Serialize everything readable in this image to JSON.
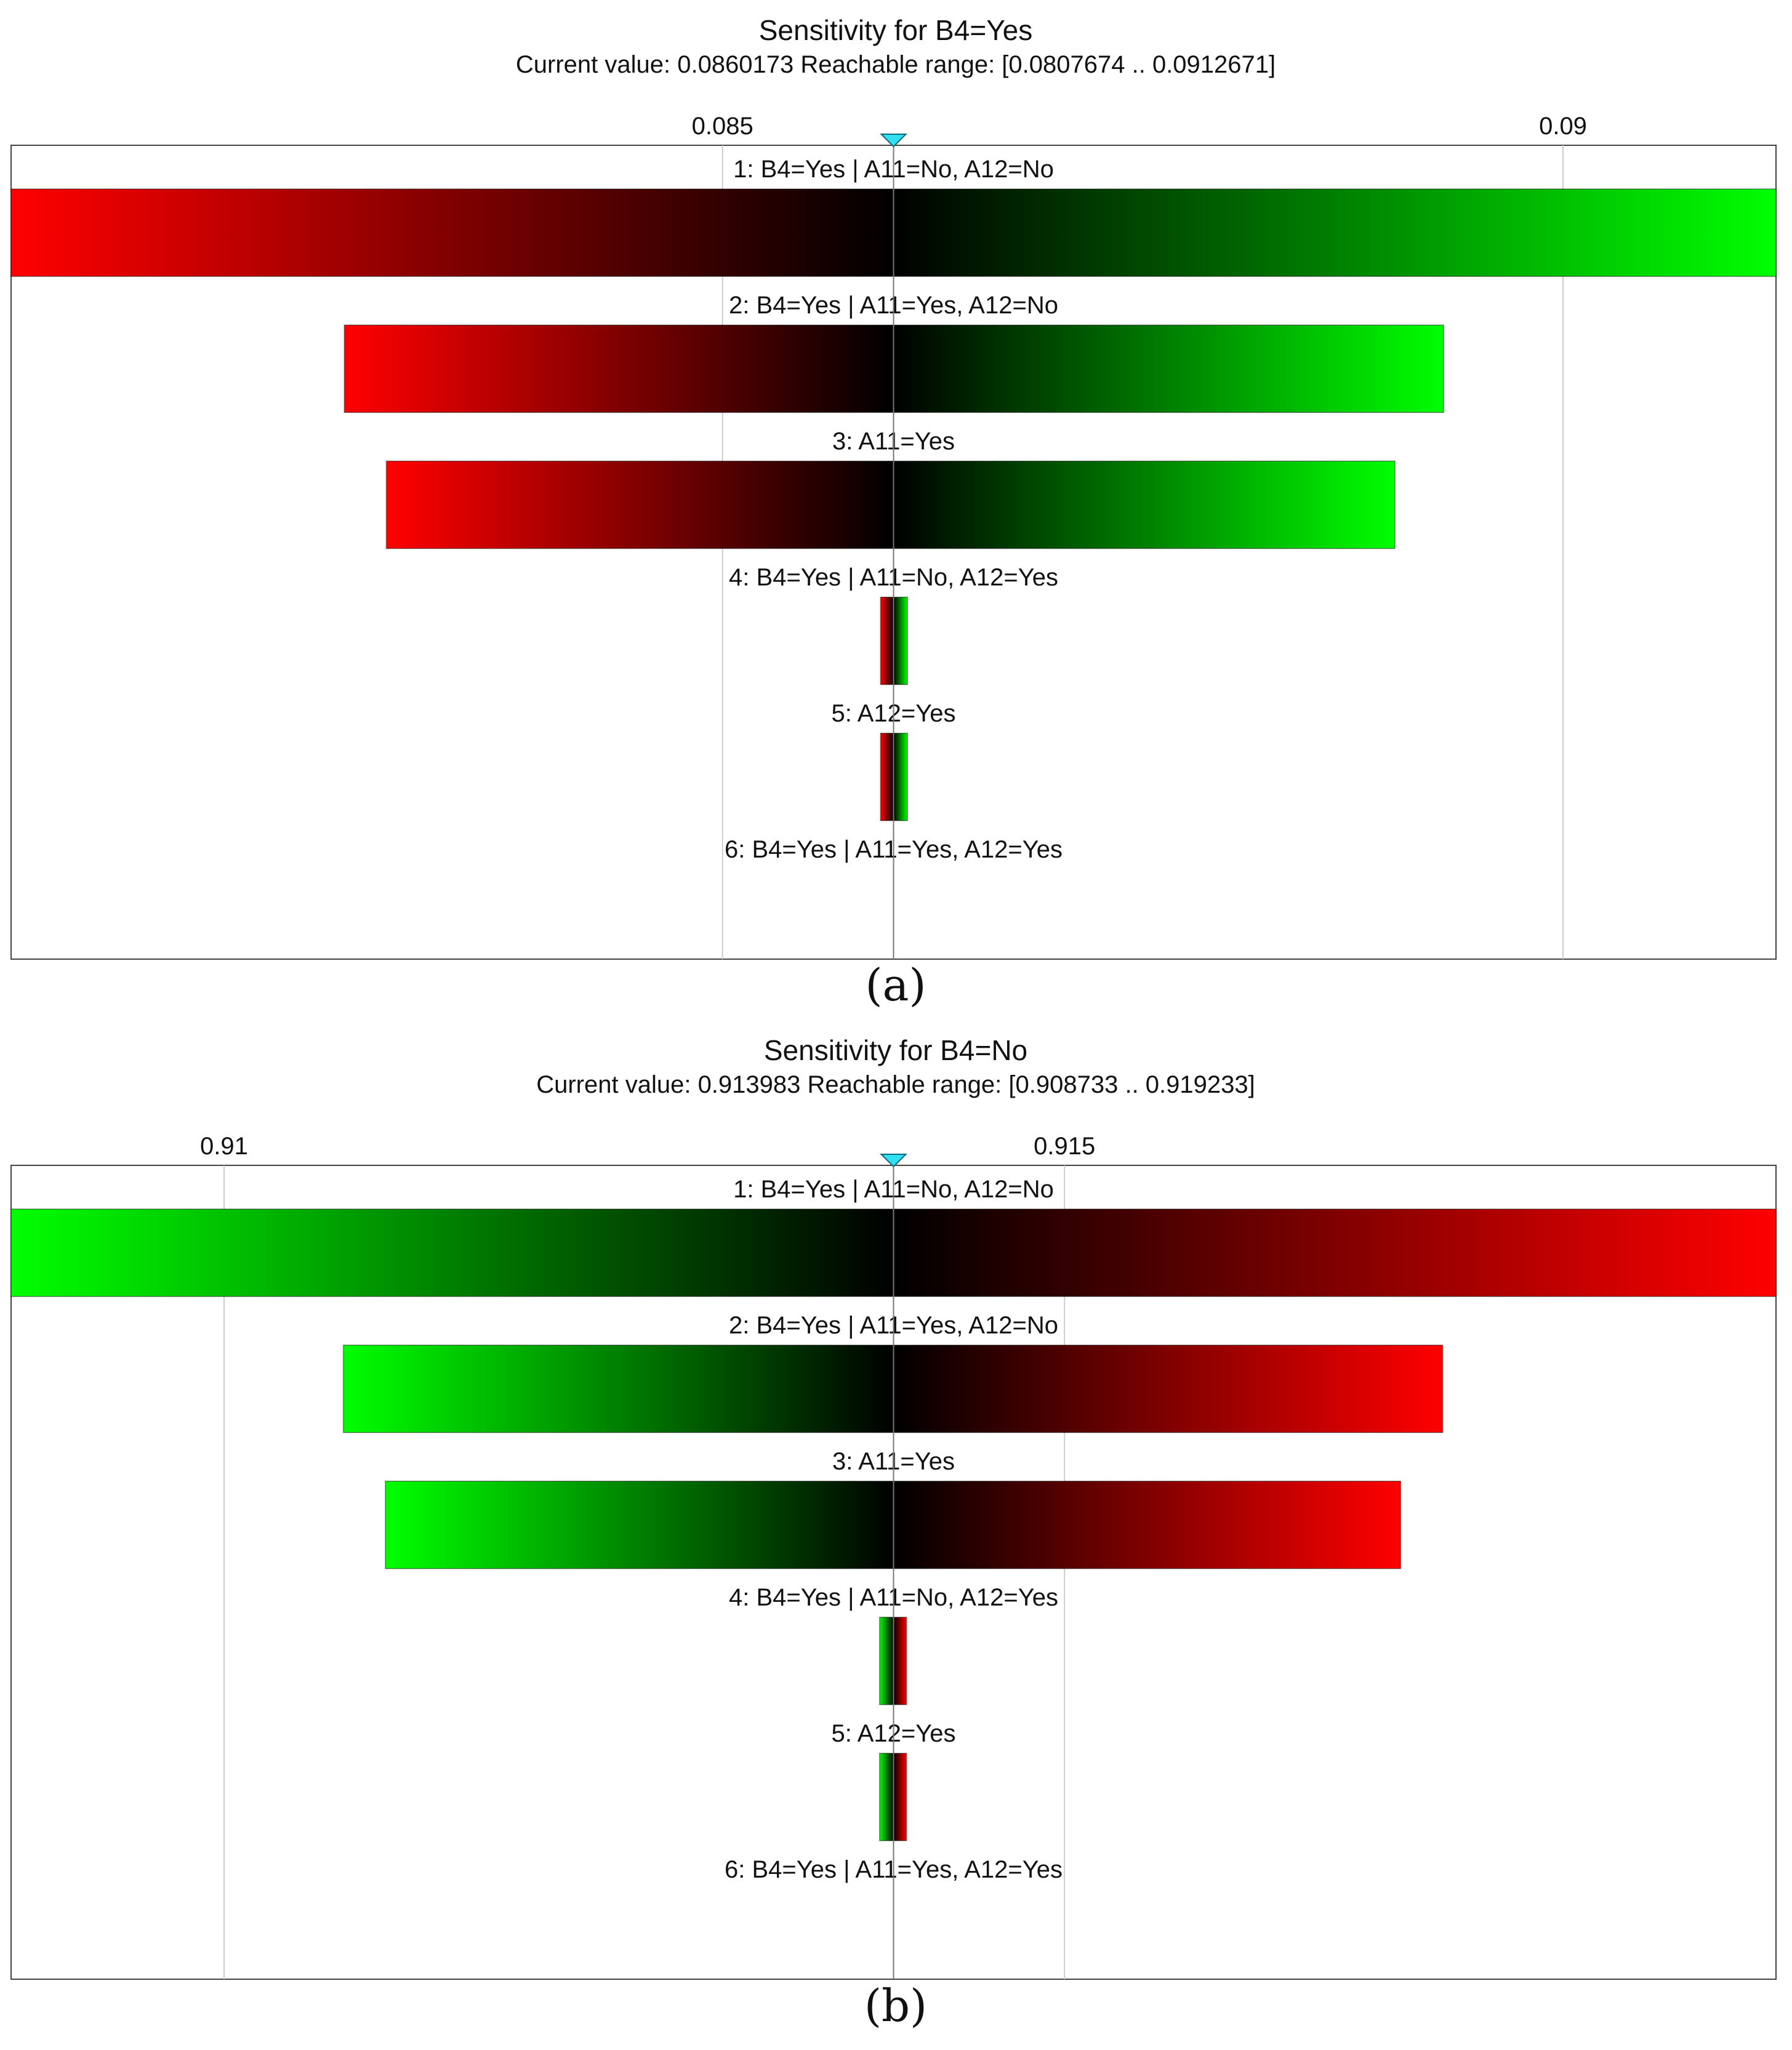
{
  "chart_data": [
    {
      "type": "bar",
      "panel_label": "(a)",
      "title": "Sensitivity for B4=Yes",
      "subtitle": "Current value: 0.0860173  Reachable range: [0.0807674 .. 0.0912671]",
      "current_value": 0.0860173,
      "xlim": [
        0.0807674,
        0.0912671
      ],
      "ticks": [
        {
          "value": 0.085,
          "label": "0.085"
        },
        {
          "value": 0.09,
          "label": "0.09"
        }
      ],
      "grid": true,
      "low_color": "#ff0000",
      "high_color": "#00ff00",
      "rows": [
        {
          "label": "1: B4=Yes | A11=No, A12=No",
          "low": 0.0807674,
          "high": 0.0912671
        },
        {
          "label": "2: B4=Yes | A11=Yes, A12=No",
          "low": 0.08275,
          "high": 0.08929
        },
        {
          "label": "3: A11=Yes",
          "low": 0.083,
          "high": 0.089
        },
        {
          "label": "4: B4=Yes | A11=No, A12=Yes",
          "low": 0.08594,
          "high": 0.0861
        },
        {
          "label": "5: A12=Yes",
          "low": 0.08594,
          "high": 0.0861
        },
        {
          "label": "6: B4=Yes | A11=Yes, A12=Yes",
          "low": 0.0860173,
          "high": 0.0860173
        }
      ]
    },
    {
      "type": "bar",
      "panel_label": "(b)",
      "title": "Sensitivity for B4=No",
      "subtitle": "Current value: 0.913983  Reachable range: [0.908733 .. 0.919233]",
      "current_value": 0.913983,
      "xlim": [
        0.908733,
        0.919233
      ],
      "ticks": [
        {
          "value": 0.91,
          "label": "0.91"
        },
        {
          "value": 0.915,
          "label": "0.915"
        }
      ],
      "grid": true,
      "low_color": "#00ff00",
      "high_color": "#ff0000",
      "rows": [
        {
          "label": "1: B4=Yes | A11=No, A12=No",
          "low": 0.908733,
          "high": 0.919233
        },
        {
          "label": "2: B4=Yes | A11=Yes, A12=No",
          "low": 0.91071,
          "high": 0.91725
        },
        {
          "label": "3: A11=Yes",
          "low": 0.91096,
          "high": 0.917
        },
        {
          "label": "4: B4=Yes | A11=No, A12=Yes",
          "low": 0.9139,
          "high": 0.91406
        },
        {
          "label": "5: A12=Yes",
          "low": 0.9139,
          "high": 0.91406
        },
        {
          "label": "6: B4=Yes | A11=Yes, A12=Yes",
          "low": 0.913983,
          "high": 0.913983
        }
      ]
    }
  ]
}
